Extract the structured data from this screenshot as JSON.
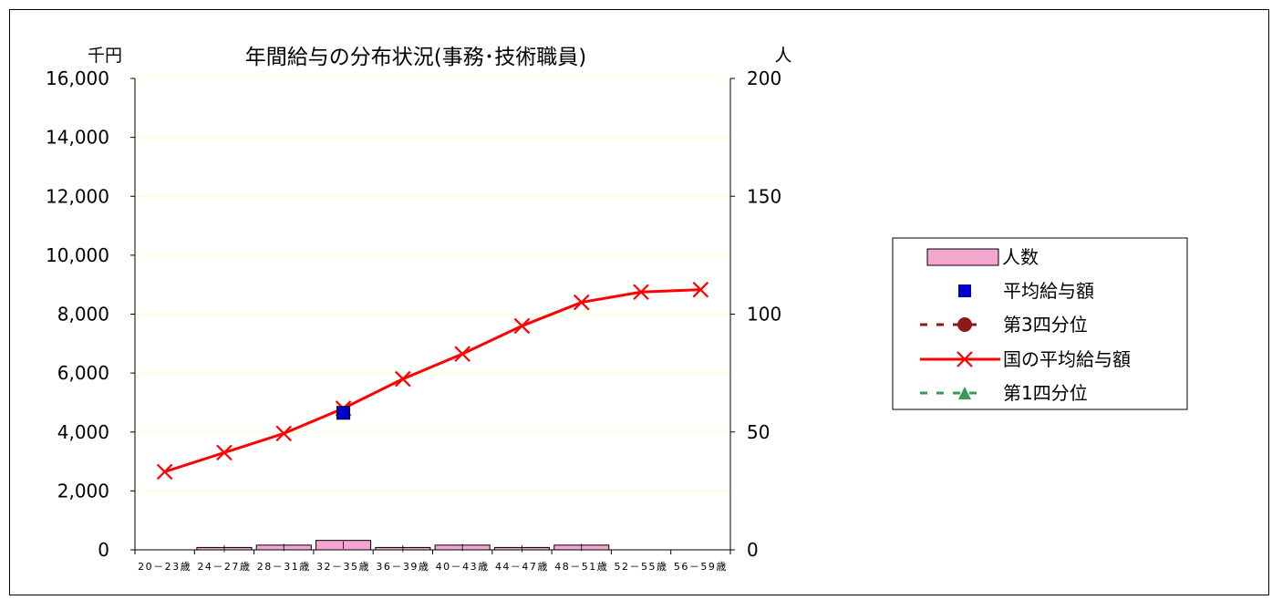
{
  "chart_data": {
    "type": "bar",
    "title": "年間給与の分布状況(事務･技術職員)",
    "left_unit": "千円",
    "right_unit": "人",
    "categories": [
      "20－23歳",
      "24－27歳",
      "28－31歳",
      "32－35歳",
      "36－39歳",
      "40－43歳",
      "44－47歳",
      "48－51歳",
      "52－55歳",
      "56－59歳"
    ],
    "left_axis": {
      "min": 0,
      "max": 16000,
      "step": 2000,
      "ticks": [
        "0",
        "2,000",
        "4,000",
        "6,000",
        "8,000",
        "10,000",
        "12,000",
        "14,000",
        "16,000"
      ]
    },
    "right_axis": {
      "min": 0,
      "max": 200,
      "step": 50,
      "ticks": [
        "0",
        "50",
        "100",
        "150",
        "200"
      ]
    },
    "grid": true,
    "legend_position": "right",
    "series": [
      {
        "name": "人数",
        "kind": "bar",
        "axis": "right",
        "color": "#f4a6cf",
        "values": [
          0,
          1,
          2,
          4,
          1,
          2,
          1,
          2,
          0,
          0
        ]
      },
      {
        "name": "平均給与額",
        "kind": "marker-square",
        "axis": "left",
        "color": "#0000cc",
        "values": [
          null,
          null,
          null,
          4650,
          null,
          null,
          null,
          null,
          null,
          null
        ]
      },
      {
        "name": "第3四分位",
        "kind": "dashed-circle",
        "axis": "left",
        "color": "#8b1a1a",
        "values": [
          null,
          null,
          null,
          null,
          null,
          null,
          null,
          null,
          null,
          null
        ]
      },
      {
        "name": "国の平均給与額",
        "kind": "line-x",
        "axis": "left",
        "color": "#ff0000",
        "values": [
          2650,
          3300,
          3950,
          4800,
          5800,
          6650,
          7600,
          8400,
          8750,
          8830
        ]
      },
      {
        "name": "第1四分位",
        "kind": "dashed-triangle",
        "axis": "left",
        "color": "#3a9a5a",
        "values": [
          null,
          null,
          null,
          null,
          null,
          null,
          null,
          null,
          null,
          null
        ]
      }
    ]
  }
}
